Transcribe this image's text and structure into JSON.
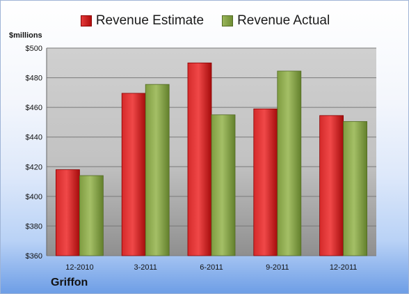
{
  "company": "Griffon",
  "unit_label": "$millions",
  "colors": {
    "estimate": "#c81b1b",
    "actual": "#84a146",
    "plot_background": "#c8c8c8"
  },
  "chart_data": {
    "type": "bar",
    "title": "",
    "xlabel": "",
    "ylabel": "$millions",
    "categories": [
      "12-2010",
      "3-2011",
      "6-2011",
      "9-2011",
      "12-2011"
    ],
    "series": [
      {
        "name": "Revenue Estimate",
        "values": [
          418,
          469.5,
          490,
          459,
          454.5
        ]
      },
      {
        "name": "Revenue Actual",
        "values": [
          414,
          475.5,
          455,
          484.5,
          450.5
        ]
      }
    ],
    "ylim": [
      360,
      500
    ],
    "yticks": [
      360,
      380,
      400,
      420,
      440,
      460,
      480,
      500
    ],
    "ytick_labels": [
      "$360",
      "$380",
      "$400",
      "$420",
      "$440",
      "$460",
      "$480",
      "$500"
    ],
    "legend_position": "top",
    "grid": true
  }
}
